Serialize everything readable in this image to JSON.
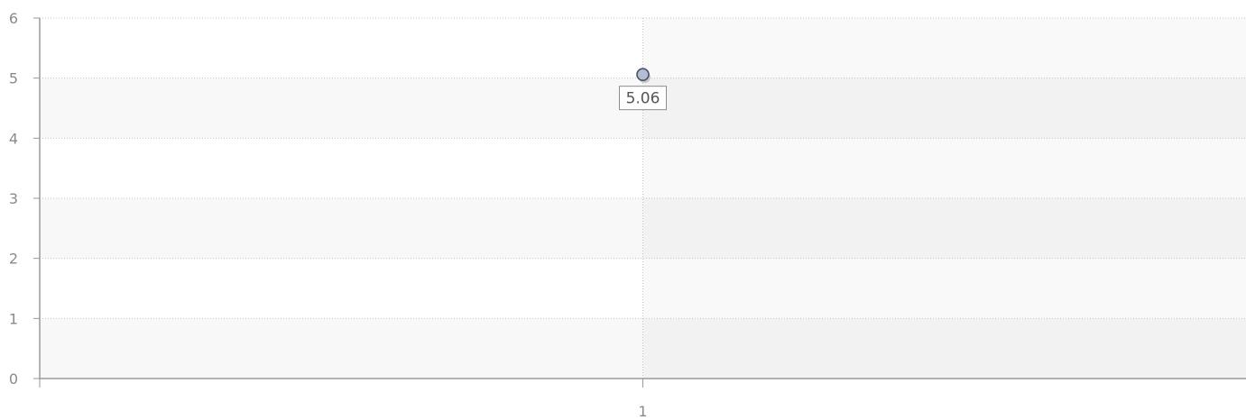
{
  "chart_data": {
    "type": "scatter",
    "categories": [
      "1"
    ],
    "series": [
      {
        "values": [
          5.06
        ]
      }
    ],
    "data_labels": [
      "5.06"
    ],
    "y_ticks": [
      "0",
      "1",
      "2",
      "3",
      "4",
      "5",
      "6"
    ],
    "x_ticks": [
      "1"
    ],
    "ylim": [
      0,
      6
    ],
    "grid": true,
    "legend": "none",
    "colors": {
      "point_fill": "#b3bdd4",
      "point_stroke": "#4a5068",
      "band_alternate": "#f8f8f8"
    }
  }
}
